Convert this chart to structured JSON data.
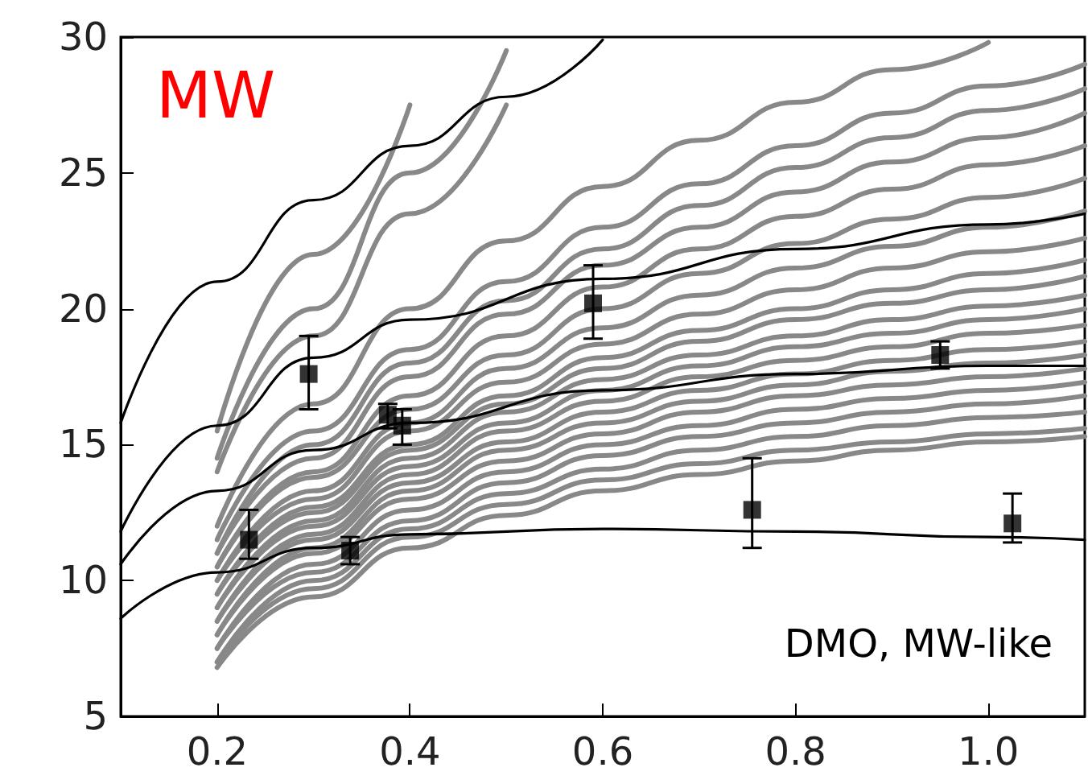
{
  "chart_data": {
    "type": "line",
    "annotations": [
      "MW",
      "DMO, MW-like"
    ],
    "xlim": [
      0.1,
      1.1
    ],
    "xticks": [
      0.2,
      0.4,
      0.6,
      0.8,
      {
        "value": 1,
        "label": "1.0"
      }
    ],
    "ylim": [
      5,
      30
    ],
    "yticks": [
      5,
      10,
      15,
      20,
      25,
      30
    ],
    "grid": false,
    "marker": "none",
    "line_style": "solid",
    "series": [
      {
        "color": "#888888",
        "x": [
          0.2,
          0.3,
          0.4
        ],
        "values": [
          15.5,
          22,
          27.5
        ]
      },
      {
        "color": "#888888",
        "x": [
          0.2,
          0.3,
          0.4,
          0.5
        ],
        "values": [
          14.5,
          20,
          25,
          29.5
        ]
      },
      {
        "color": "#888888",
        "x": [
          0.2,
          0.3,
          0.4,
          0.5
        ],
        "values": [
          14,
          19,
          23.5,
          27.5
        ]
      },
      {
        "color": "#888888",
        "x": [
          0.2,
          0.3,
          0.4,
          0.5,
          0.6,
          0.7,
          0.8,
          0.9,
          1.0
        ],
        "values": [
          12,
          16.5,
          20,
          22.5,
          24.5,
          26.2,
          27.6,
          28.8,
          29.8
        ]
      },
      {
        "color": "#888888",
        "x": [
          0.2,
          0.3,
          0.4,
          0.5,
          0.6,
          0.7,
          0.8,
          0.9,
          1.0,
          1.1
        ],
        "values": [
          11.5,
          15.5,
          18.5,
          21,
          23,
          24.6,
          26,
          27.2,
          28.2,
          29
        ]
      },
      {
        "color": "#888888",
        "x": [
          0.2,
          0.3,
          0.4,
          0.5,
          0.6,
          0.7,
          0.8,
          0.9,
          1.0,
          1.1
        ],
        "values": [
          11,
          15,
          18,
          20.3,
          22.2,
          23.8,
          25.2,
          26.3,
          27.3,
          28.1
        ]
      },
      {
        "color": "#888888",
        "x": [
          0.2,
          0.3,
          0.4,
          0.5,
          0.6,
          0.7,
          0.8,
          0.9,
          1.0,
          1.1
        ],
        "values": [
          11,
          14.5,
          17.5,
          19.8,
          21.6,
          23,
          24.3,
          25.4,
          26.3,
          27.2
        ]
      },
      {
        "color": "#888888",
        "x": [
          0.2,
          0.3,
          0.4,
          0.5,
          0.6,
          0.7,
          0.8,
          0.9,
          1.0,
          1.1
        ],
        "values": [
          10.5,
          14,
          16.8,
          19,
          20.8,
          22.2,
          23.4,
          24.4,
          25.3,
          26
        ]
      },
      {
        "color": "#888888",
        "x": [
          0.2,
          0.3,
          0.4,
          0.5,
          0.6,
          0.7,
          0.8,
          0.9,
          1.0,
          1.1
        ],
        "values": [
          10.5,
          13.8,
          16.3,
          18.3,
          20,
          21.3,
          22.4,
          23.3,
          24.1,
          24.8
        ]
      },
      {
        "color": "#888888",
        "x": [
          0.2,
          0.3,
          0.4,
          0.5,
          0.6,
          0.7,
          0.8,
          0.9,
          1.0,
          1.1
        ],
        "values": [
          10,
          13.3,
          15.8,
          17.8,
          19.3,
          20.5,
          21.5,
          22.3,
          23,
          23.6
        ]
      },
      {
        "color": "#888888",
        "x": [
          0.2,
          0.3,
          0.4,
          0.5,
          0.6,
          0.7,
          0.8,
          0.9,
          1.0,
          1.1
        ],
        "values": [
          10,
          13,
          15.5,
          17.3,
          18.7,
          19.8,
          20.7,
          21.5,
          22.1,
          22.6
        ]
      },
      {
        "color": "#888888",
        "x": [
          0.2,
          0.3,
          0.4,
          0.5,
          0.6,
          0.7,
          0.8,
          0.9,
          1.0,
          1.1
        ],
        "values": [
          9.5,
          12.7,
          15,
          16.8,
          18.2,
          19.2,
          20,
          20.7,
          21.3,
          21.8
        ]
      },
      {
        "color": "#888888",
        "x": [
          0.2,
          0.3,
          0.4,
          0.5,
          0.6,
          0.7,
          0.8,
          0.9,
          1.0,
          1.1
        ],
        "values": [
          9.5,
          12.5,
          14.8,
          16.5,
          17.8,
          18.8,
          19.6,
          20.2,
          20.7,
          21.2
        ]
      },
      {
        "color": "#888888",
        "x": [
          0.2,
          0.3,
          0.4,
          0.5,
          0.6,
          0.7,
          0.8,
          0.9,
          1.0,
          1.1
        ],
        "values": [
          9,
          12.2,
          14.5,
          16.2,
          17.4,
          18.3,
          19,
          19.6,
          20.1,
          20.5
        ]
      },
      {
        "color": "#888888",
        "x": [
          0.2,
          0.3,
          0.4,
          0.5,
          0.6,
          0.7,
          0.8,
          0.9,
          1.0,
          1.1
        ],
        "values": [
          9,
          12,
          14.2,
          15.8,
          17,
          17.9,
          18.6,
          19.1,
          19.6,
          20
        ]
      },
      {
        "color": "#888888",
        "x": [
          0.2,
          0.3,
          0.4,
          0.5,
          0.6,
          0.7,
          0.8,
          0.9,
          1.0,
          1.1
        ],
        "values": [
          8.5,
          11.7,
          13.9,
          15.5,
          16.6,
          17.5,
          18.1,
          18.6,
          19.1,
          19.4
        ]
      },
      {
        "color": "#888888",
        "x": [
          0.2,
          0.3,
          0.4,
          0.5,
          0.6,
          0.7,
          0.8,
          0.9,
          1.0,
          1.1
        ],
        "values": [
          8.5,
          11.5,
          13.6,
          15.1,
          16.2,
          17,
          17.6,
          18.1,
          18.5,
          18.8
        ]
      },
      {
        "color": "#888888",
        "x": [
          0.2,
          0.3,
          0.4,
          0.5,
          0.6,
          0.7,
          0.8,
          0.9,
          1.0,
          1.1
        ],
        "values": [
          8,
          11.2,
          13.3,
          14.8,
          15.8,
          16.6,
          17.2,
          17.7,
          18,
          18.3
        ]
      },
      {
        "color": "#888888",
        "x": [
          0.2,
          0.3,
          0.4,
          0.5,
          0.6,
          0.7,
          0.8,
          0.9,
          1.0,
          1.1
        ],
        "values": [
          8,
          11,
          13,
          14.4,
          15.4,
          16.2,
          16.8,
          17.2,
          17.5,
          17.8
        ]
      },
      {
        "color": "#888888",
        "x": [
          0.2,
          0.3,
          0.4,
          0.5,
          0.6,
          0.7,
          0.8,
          0.9,
          1.0,
          1.1
        ],
        "values": [
          7.5,
          10.6,
          12.6,
          14,
          15,
          15.7,
          16.3,
          16.7,
          17,
          17.3
        ]
      },
      {
        "color": "#888888",
        "x": [
          0.2,
          0.3,
          0.4,
          0.5,
          0.6,
          0.7,
          0.8,
          0.9,
          1.0,
          1.1
        ],
        "values": [
          7.5,
          10.3,
          12.2,
          13.6,
          14.6,
          15.3,
          15.8,
          16.2,
          16.5,
          16.8
        ]
      },
      {
        "color": "#888888",
        "x": [
          0.2,
          0.3,
          0.4,
          0.5,
          0.6,
          0.7,
          0.8,
          0.9,
          1.0,
          1.1
        ],
        "values": [
          7,
          10,
          11.9,
          13.2,
          14.1,
          14.8,
          15.3,
          15.7,
          16,
          16.2
        ]
      },
      {
        "color": "#888888",
        "x": [
          0.2,
          0.3,
          0.4,
          0.5,
          0.6,
          0.7,
          0.8,
          0.9,
          1.0,
          1.1
        ],
        "values": [
          7,
          9.7,
          11.6,
          12.8,
          13.7,
          14.3,
          14.8,
          15.1,
          15.4,
          15.6
        ]
      },
      {
        "color": "#888888",
        "x": [
          0.2,
          0.3,
          0.4,
          0.5,
          0.6,
          0.7,
          0.8,
          0.9,
          1.0,
          1.1
        ],
        "values": [
          6.8,
          9.4,
          11.2,
          12.4,
          13.3,
          13.9,
          14.4,
          14.8,
          15.1,
          15.3
        ]
      },
      {
        "color": "#000000",
        "x": [
          0.1,
          0.2,
          0.3,
          0.4,
          0.5,
          0.6
        ],
        "values": [
          15.8,
          21,
          24,
          26,
          27.8,
          29.9
        ]
      },
      {
        "color": "#000000",
        "x": [
          0.1,
          0.2,
          0.3,
          0.4,
          0.6,
          0.8,
          1.0,
          1.1
        ],
        "values": [
          11.8,
          15.7,
          18.2,
          19.6,
          21.1,
          22.2,
          23.1,
          23.5
        ]
      },
      {
        "color": "#000000",
        "x": [
          0.1,
          0.2,
          0.3,
          0.4,
          0.6,
          0.8,
          1.0,
          1.1
        ],
        "values": [
          10.6,
          13.3,
          14.8,
          15.8,
          17,
          17.6,
          17.9,
          17.9
        ]
      },
      {
        "color": "#000000",
        "x": [
          0.1,
          0.2,
          0.3,
          0.4,
          0.6,
          0.8,
          1.0,
          1.1
        ],
        "values": [
          8.6,
          10.3,
          11.2,
          11.7,
          11.9,
          11.8,
          11.6,
          11.5
        ]
      },
      {
        "type": "scatter",
        "marker": "square",
        "color": "#000000",
        "x": [
          0.233,
          0.295,
          0.338,
          0.377,
          0.392,
          0.59,
          0.755,
          0.95,
          1.025
        ],
        "values": [
          11.5,
          17.6,
          11.1,
          16.1,
          15.7,
          20.2,
          12.6,
          18.3,
          12.1
        ],
        "errors": [
          [
            10.8,
            12.6
          ],
          [
            16.3,
            19.0
          ],
          [
            10.6,
            11.6
          ],
          [
            15.6,
            16.5
          ],
          [
            15.0,
            16.3
          ],
          [
            18.9,
            21.6
          ],
          [
            11.2,
            14.5
          ],
          [
            17.8,
            18.8
          ],
          [
            11.4,
            13.2
          ]
        ]
      }
    ]
  }
}
